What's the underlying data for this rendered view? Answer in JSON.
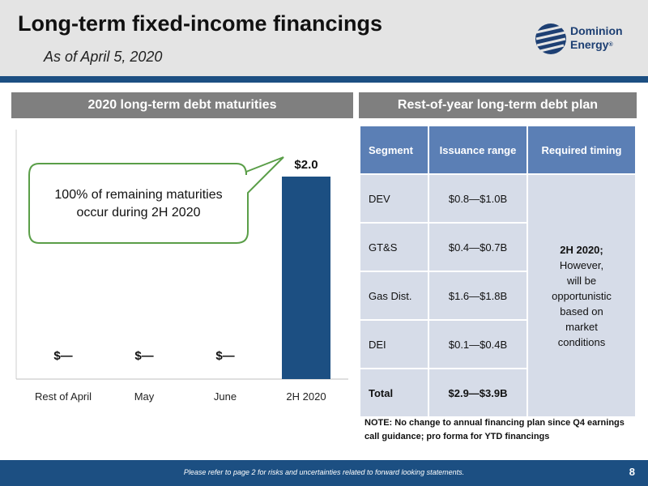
{
  "header": {
    "title": "Long-term fixed-income financings",
    "subtitle": "As of April 5, 2020",
    "logo_line1": "Dominion",
    "logo_line2": "Energy",
    "logo_mark": "®"
  },
  "left_panel": {
    "heading": "2020 long-term debt maturities",
    "callout_line1": "100% of remaining maturities",
    "callout_line2": "occur during 2H 2020"
  },
  "chart_data": {
    "type": "bar",
    "categories": [
      "Rest of April",
      "May",
      "June",
      "2H 2020"
    ],
    "values": [
      0,
      0,
      0,
      2.0
    ],
    "data_labels": [
      "$—",
      "$—",
      "$—",
      "$2.0"
    ],
    "title": "2020 long-term debt maturities",
    "xlabel": "",
    "ylabel": "",
    "bar_color": "#1c4f82",
    "grid": false
  },
  "right_panel": {
    "heading": "Rest-of-year long-term debt plan",
    "columns": [
      "Segment",
      "Issuance range",
      "Required timing"
    ],
    "rows": [
      {
        "segment": "DEV",
        "range": "$0.8—$1.0B"
      },
      {
        "segment": "GT&S",
        "range": "$0.4—$0.7B"
      },
      {
        "segment": "Gas Dist.",
        "range": "$1.6—$1.8B"
      },
      {
        "segment": "DEI",
        "range": "$0.1—$0.4B"
      }
    ],
    "total": {
      "segment": "Total",
      "range": "$2.9—$3.9B"
    },
    "timing_bold": "2H 2020;",
    "timing_lines": [
      "However,",
      "will be",
      "opportunistic",
      "based on",
      "market",
      "conditions"
    ],
    "note": "NOTE: No change to annual financing plan since Q4 earnings call guidance; pro forma for YTD financings"
  },
  "footer": {
    "text": "Please refer to page 2 for risks and uncertainties related to forward looking statements.",
    "page": "8"
  }
}
